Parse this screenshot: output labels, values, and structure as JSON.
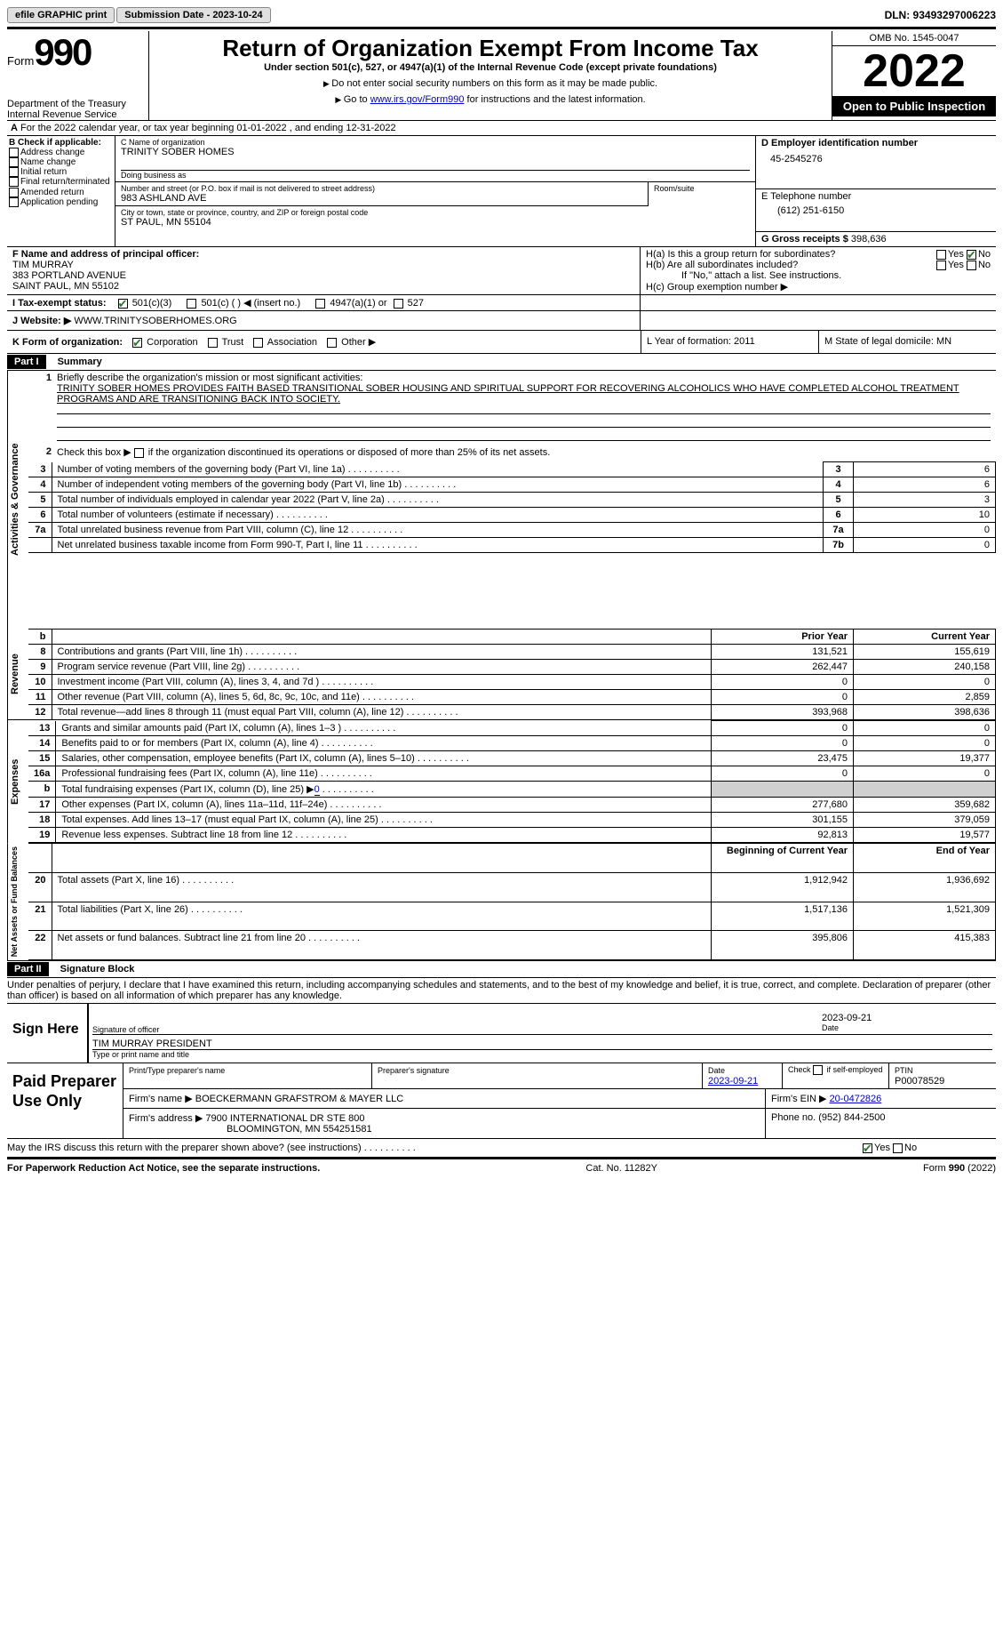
{
  "topbar": {
    "efile": "efile GRAPHIC print",
    "sub_label": "Submission Date - 2023-10-24",
    "dln": "DLN: 93493297006223"
  },
  "header": {
    "form_word": "Form",
    "form_num": "990",
    "dept": "Department of the Treasury",
    "irs": "Internal Revenue Service",
    "title": "Return of Organization Exempt From Income Tax",
    "sub1": "Under section 501(c), 527, or 4947(a)(1) of the Internal Revenue Code (except private foundations)",
    "sub2": "Do not enter social security numbers on this form as it may be made public.",
    "sub3_prefix": "Go to ",
    "sub3_link": "www.irs.gov/Form990",
    "sub3_suffix": " for instructions and the latest information.",
    "omb": "OMB No. 1545-0047",
    "year": "2022",
    "open": "Open to Public Inspection"
  },
  "lineA": {
    "text": "For the 2022 calendar year, or tax year beginning 01-01-2022    , and ending 12-31-2022"
  },
  "boxB": {
    "label": "B Check if applicable:",
    "items": [
      "Address change",
      "Name change",
      "Initial return",
      "Final return/terminated",
      "Amended return",
      "Application pending"
    ]
  },
  "boxC": {
    "name_label": "C Name of organization",
    "name": "TRINITY SOBER HOMES",
    "dba_label": "Doing business as",
    "street_label": "Number and street (or P.O. box if mail is not delivered to street address)",
    "room_label": "Room/suite",
    "street": "983 ASHLAND AVE",
    "city_label": "City or town, state or province, country, and ZIP or foreign postal code",
    "city": "ST PAUL, MN  55104"
  },
  "boxD": {
    "label": "D Employer identification number",
    "val": "45-2545276",
    "tel_label": "E Telephone number",
    "tel": "(612) 251-6150",
    "gross_label": "G Gross receipts $ ",
    "gross": "398,636"
  },
  "boxF": {
    "label": "F Name and address of principal officer:",
    "name": "TIM MURRAY",
    "addr1": "383 PORTLAND AVENUE",
    "addr2": "SAINT PAUL, MN  55102"
  },
  "boxH": {
    "ha": "H(a)  Is this a group return for subordinates?",
    "hb": "H(b)  Are all subordinates included?",
    "note": "If \"No,\" attach a list. See instructions.",
    "hc": "H(c)  Group exemption number ▶"
  },
  "lineI": {
    "label": "I    Tax-exempt status:",
    "opt1": "501(c)(3)",
    "opt2": "501(c) (   ) ◀ (insert no.)",
    "opt3": "4947(a)(1) or",
    "opt4": "527"
  },
  "lineJ": {
    "label": "J    Website: ▶",
    "val": " WWW.TRINITYSOBERHOMES.ORG"
  },
  "lineK": {
    "label": "K Form of organization:",
    "opts": [
      "Corporation",
      "Trust",
      "Association",
      "Other ▶"
    ],
    "L": "L Year of formation: 2011",
    "M": "M State of legal domicile: MN"
  },
  "part1": {
    "hdr": "Part I",
    "title": "Summary",
    "vert1": "Activities & Governance",
    "vert2": "Revenue",
    "vert3": "Expenses",
    "vert4": "Net Assets or Fund Balances",
    "l1_label": "Briefly describe the organization's mission or most significant activities:",
    "l1_text": "TRINITY SOBER HOMES PROVIDES FAITH BASED TRANSITIONAL SOBER HOUSING AND SPIRITUAL SUPPORT FOR RECOVERING ALCOHOLICS WHO HAVE COMPLETED ALCOHOL TREATMENT PROGRAMS AND ARE TRANSITIONING BACK INTO SOCIETY.",
    "l2": "Check this box ▶      if the organization discontinued its operations or disposed of more than 25% of its net assets.",
    "rows_ag": [
      {
        "n": "3",
        "t": "Number of voting members of the governing body (Part VI, line 1a)",
        "box": "3",
        "v": "6"
      },
      {
        "n": "4",
        "t": "Number of independent voting members of the governing body (Part VI, line 1b)",
        "box": "4",
        "v": "6"
      },
      {
        "n": "5",
        "t": "Total number of individuals employed in calendar year 2022 (Part V, line 2a)",
        "box": "5",
        "v": "3"
      },
      {
        "n": "6",
        "t": "Total number of volunteers (estimate if necessary)",
        "box": "6",
        "v": "10"
      },
      {
        "n": "7a",
        "t": "Total unrelated business revenue from Part VIII, column (C), line 12",
        "box": "7a",
        "v": "0"
      },
      {
        "n": "",
        "t": "Net unrelated business taxable income from Form 990-T, Part I, line 11",
        "box": "7b",
        "v": "0"
      }
    ],
    "col_py": "Prior Year",
    "col_cy": "Current Year",
    "rows_rev": [
      {
        "n": "8",
        "t": "Contributions and grants (Part VIII, line 1h)",
        "py": "131,521",
        "cy": "155,619"
      },
      {
        "n": "9",
        "t": "Program service revenue (Part VIII, line 2g)",
        "py": "262,447",
        "cy": "240,158"
      },
      {
        "n": "10",
        "t": "Investment income (Part VIII, column (A), lines 3, 4, and 7d )",
        "py": "0",
        "cy": "0"
      },
      {
        "n": "11",
        "t": "Other revenue (Part VIII, column (A), lines 5, 6d, 8c, 9c, 10c, and 11e)",
        "py": "0",
        "cy": "2,859"
      },
      {
        "n": "12",
        "t": "Total revenue—add lines 8 through 11 (must equal Part VIII, column (A), line 12)",
        "py": "393,968",
        "cy": "398,636"
      }
    ],
    "rows_exp": [
      {
        "n": "13",
        "t": "Grants and similar amounts paid (Part IX, column (A), lines 1–3 )",
        "py": "0",
        "cy": "0"
      },
      {
        "n": "14",
        "t": "Benefits paid to or for members (Part IX, column (A), line 4)",
        "py": "0",
        "cy": "0"
      },
      {
        "n": "15",
        "t": "Salaries, other compensation, employee benefits (Part IX, column (A), lines 5–10)",
        "py": "23,475",
        "cy": "19,377"
      },
      {
        "n": "16a",
        "t": "Professional fundraising fees (Part IX, column (A), line 11e)",
        "py": "0",
        "cy": "0"
      },
      {
        "n": "b",
        "t": "Total fundraising expenses (Part IX, column (D), line 25) ▶",
        "py": "shade",
        "cy": "shade",
        "extra": "0"
      },
      {
        "n": "17",
        "t": "Other expenses (Part IX, column (A), lines 11a–11d, 11f–24e)",
        "py": "277,680",
        "cy": "359,682"
      },
      {
        "n": "18",
        "t": "Total expenses. Add lines 13–17 (must equal Part IX, column (A), line 25)",
        "py": "301,155",
        "cy": "379,059"
      },
      {
        "n": "19",
        "t": "Revenue less expenses. Subtract line 18 from line 12",
        "py": "92,813",
        "cy": "19,577"
      }
    ],
    "col_bcy": "Beginning of Current Year",
    "col_eoy": "End of Year",
    "rows_na": [
      {
        "n": "20",
        "t": "Total assets (Part X, line 16)",
        "py": "1,912,942",
        "cy": "1,936,692"
      },
      {
        "n": "21",
        "t": "Total liabilities (Part X, line 26)",
        "py": "1,517,136",
        "cy": "1,521,309"
      },
      {
        "n": "22",
        "t": "Net assets or fund balances. Subtract line 21 from line 20",
        "py": "395,806",
        "cy": "415,383"
      }
    ]
  },
  "part2": {
    "hdr": "Part II",
    "title": "Signature Block",
    "decl": "Under penalties of perjury, I declare that I have examined this return, including accompanying schedules and statements, and to the best of my knowledge and belief, it is true, correct, and complete. Declaration of preparer (other than officer) is based on all information of which preparer has any knowledge.",
    "sign_here": "Sign Here",
    "sig_officer": "Signature of officer",
    "sig_date": "2023-09-21",
    "sig_name": "TIM MURRAY  PRESIDENT",
    "sig_name_label": "Type or print name and title",
    "paid": "Paid Preparer Use Only",
    "p_name_label": "Print/Type preparer's name",
    "p_sig_label": "Preparer's signature",
    "p_date_label": "Date",
    "p_date": "2023-09-21",
    "p_check": "Check        if self-employed",
    "p_ptin_label": "PTIN",
    "p_ptin": "P00078529",
    "firm_name_label": "Firm's name     ▶",
    "firm_name": "BOECKERMANN GRAFSTROM & MAYER LLC",
    "firm_ein_label": "Firm's EIN ▶",
    "firm_ein": "20-0472826",
    "firm_addr_label": "Firm's address ▶",
    "firm_addr1": "7900 INTERNATIONAL DR STE 800",
    "firm_addr2": "BLOOMINGTON, MN  554251581",
    "firm_phone_label": "Phone no.",
    "firm_phone": "(952) 844-2500",
    "discuss": "May the IRS discuss this return with the preparer shown above? (see instructions)"
  },
  "footer": {
    "left": "For Paperwork Reduction Act Notice, see the separate instructions.",
    "mid": "Cat. No. 11282Y",
    "right": "Form 990 (2022)"
  }
}
